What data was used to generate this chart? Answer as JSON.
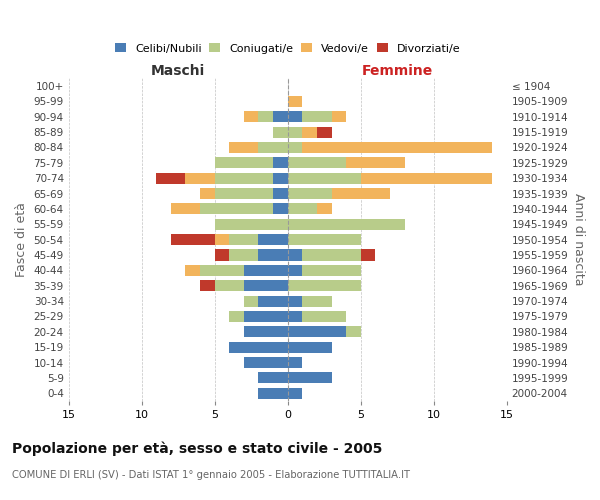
{
  "age_groups": [
    "100+",
    "95-99",
    "90-94",
    "85-89",
    "80-84",
    "75-79",
    "70-74",
    "65-69",
    "60-64",
    "55-59",
    "50-54",
    "45-49",
    "40-44",
    "35-39",
    "30-34",
    "25-29",
    "20-24",
    "15-19",
    "10-14",
    "5-9",
    "0-4"
  ],
  "birth_years": [
    "≤ 1904",
    "1905-1909",
    "1910-1914",
    "1915-1919",
    "1920-1924",
    "1925-1929",
    "1930-1934",
    "1935-1939",
    "1940-1944",
    "1945-1949",
    "1950-1954",
    "1955-1959",
    "1960-1964",
    "1965-1969",
    "1970-1974",
    "1975-1979",
    "1980-1984",
    "1985-1989",
    "1990-1994",
    "1995-1999",
    "2000-2004"
  ],
  "colors": {
    "celibi": "#4a7db5",
    "coniugati": "#b8cc8a",
    "vedovi": "#f2b45c",
    "divorziati": "#c0392b"
  },
  "males": {
    "celibi": [
      0,
      0,
      1,
      0,
      0,
      1,
      1,
      1,
      1,
      0,
      2,
      2,
      3,
      3,
      2,
      3,
      3,
      4,
      3,
      2,
      2
    ],
    "coniugati": [
      0,
      0,
      1,
      1,
      2,
      4,
      4,
      4,
      5,
      5,
      2,
      2,
      3,
      2,
      1,
      1,
      0,
      0,
      0,
      0,
      0
    ],
    "vedovi": [
      0,
      0,
      1,
      0,
      2,
      0,
      2,
      1,
      2,
      0,
      1,
      0,
      1,
      0,
      0,
      0,
      0,
      0,
      0,
      0,
      0
    ],
    "divorziati": [
      0,
      0,
      0,
      0,
      0,
      0,
      2,
      0,
      0,
      0,
      3,
      1,
      0,
      1,
      0,
      0,
      0,
      0,
      0,
      0,
      0
    ]
  },
  "females": {
    "nubili": [
      0,
      0,
      1,
      0,
      0,
      0,
      0,
      0,
      0,
      0,
      0,
      1,
      1,
      0,
      1,
      1,
      4,
      3,
      1,
      3,
      1
    ],
    "coniugate": [
      0,
      0,
      2,
      1,
      1,
      4,
      5,
      3,
      2,
      8,
      5,
      4,
      4,
      5,
      2,
      3,
      1,
      0,
      0,
      0,
      0
    ],
    "vedove": [
      0,
      1,
      1,
      1,
      13,
      4,
      9,
      4,
      1,
      0,
      0,
      0,
      0,
      0,
      0,
      0,
      0,
      0,
      0,
      0,
      0
    ],
    "divorziate": [
      0,
      0,
      0,
      1,
      0,
      0,
      0,
      0,
      0,
      0,
      0,
      1,
      0,
      0,
      0,
      0,
      0,
      0,
      0,
      0,
      0
    ]
  },
  "xlim": 15,
  "title": "Popolazione per età, sesso e stato civile - 2005",
  "subtitle": "COMUNE DI ERLI (SV) - Dati ISTAT 1° gennaio 2005 - Elaborazione TUTTITALIA.IT",
  "ylabel_left": "Fasce di età",
  "ylabel_right": "Anni di nascita",
  "xlabel_left": "Maschi",
  "xlabel_right": "Femmine"
}
